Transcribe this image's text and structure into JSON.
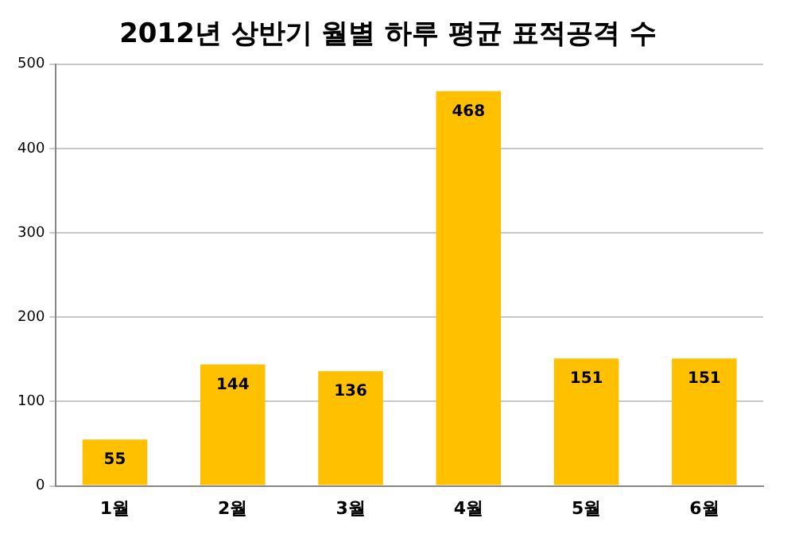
{
  "chart_data": {
    "type": "bar",
    "title": "2012년 상반기 월별 하루 평균 표적공격 수",
    "categories": [
      "1월",
      "2월",
      "3월",
      "4월",
      "5월",
      "6월"
    ],
    "values": [
      55,
      144,
      136,
      468,
      151,
      151
    ],
    "color": "#ffc000",
    "ylim": [
      0,
      500
    ],
    "yticks": [
      0,
      100,
      200,
      300,
      400,
      500
    ],
    "grid": "y",
    "legend": false,
    "data_labels": true
  }
}
